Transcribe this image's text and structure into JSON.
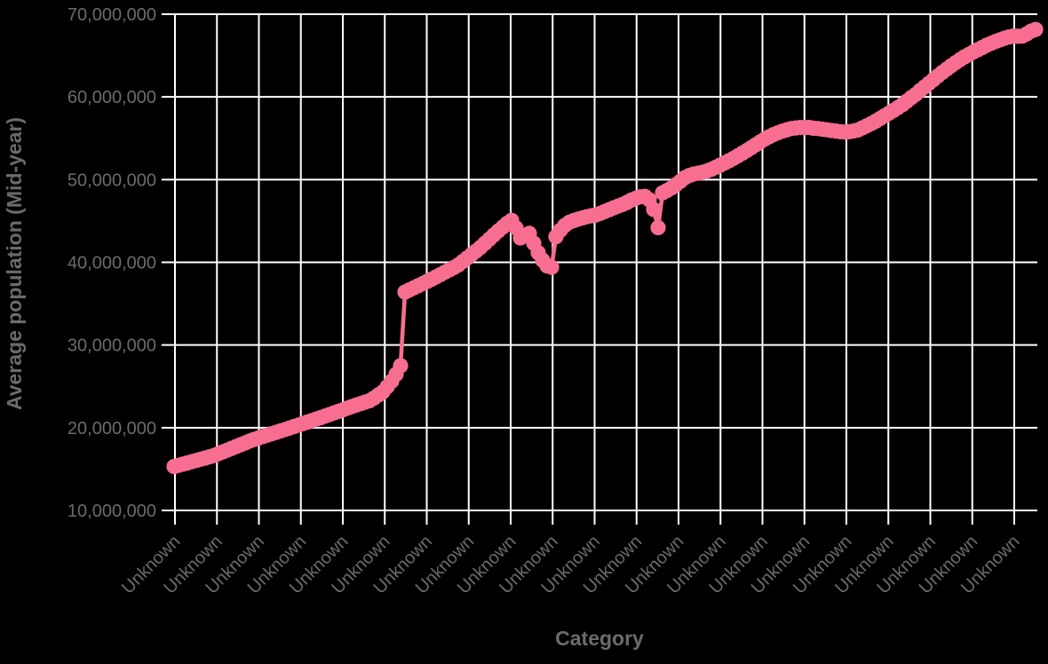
{
  "chart_data": {
    "type": "line",
    "title": "",
    "xlabel": "Category",
    "ylabel": "Average population (Mid-year)",
    "legend_position": "none",
    "grid": true,
    "ylim": [
      10000000,
      70000000
    ],
    "y_ticks": [
      10000000,
      20000000,
      30000000,
      40000000,
      50000000,
      60000000,
      70000000
    ],
    "y_tick_labels": [
      "10,000,000",
      "20,000,000",
      "30,000,000",
      "40,000,000",
      "50,000,000",
      "60,000,000",
      "70,000,000"
    ],
    "x_tick_labels": [
      "Unknown",
      "Unknown",
      "Unknown",
      "Unknown",
      "Unknown",
      "Unknown",
      "Unknown",
      "Unknown",
      "Unknown",
      "Unknown",
      "Unknown",
      "Unknown",
      "Unknown",
      "Unknown",
      "Unknown",
      "Unknown",
      "Unknown",
      "Unknown",
      "Unknown",
      "Unknown",
      "Unknown"
    ],
    "colors": {
      "line": "#F76E91",
      "grid": "#FFFFFF",
      "text": "#6B6B6B",
      "background": "#000000"
    },
    "series": [
      {
        "name": "Average population (Mid-year)",
        "marker": "circle",
        "y_unit_multiplier": 1000000,
        "values_millions": [
          15.3,
          15.45,
          15.6,
          15.74,
          15.89,
          16.04,
          16.19,
          16.33,
          16.48,
          16.64,
          16.86,
          17.08,
          17.29,
          17.51,
          17.73,
          17.94,
          18.16,
          18.38,
          18.58,
          18.76,
          18.93,
          19.1,
          19.27,
          19.45,
          19.62,
          19.79,
          19.96,
          20.14,
          20.32,
          20.5,
          20.68,
          20.86,
          21.04,
          21.22,
          21.41,
          21.59,
          21.78,
          21.97,
          22.16,
          22.36,
          22.55,
          22.74,
          22.91,
          23.09,
          23.27,
          23.59,
          23.96,
          24.33,
          24.95,
          25.63,
          26.46,
          27.5,
          36.4,
          36.66,
          36.92,
          37.18,
          37.43,
          37.69,
          37.96,
          38.24,
          38.52,
          38.81,
          39.09,
          39.37,
          39.68,
          40.1,
          40.52,
          40.94,
          41.36,
          41.8,
          42.3,
          42.8,
          43.3,
          43.79,
          44.25,
          44.71,
          45.08,
          44.15,
          42.95,
          43.3,
          43.5,
          42.31,
          41.16,
          40.25,
          39.57,
          39.4,
          43.1,
          43.89,
          44.46,
          44.84,
          45.04,
          45.23,
          45.38,
          45.52,
          45.63,
          45.73,
          45.93,
          46.15,
          46.37,
          46.59,
          46.79,
          47.0,
          47.25,
          47.54,
          47.75,
          47.92,
          47.98,
          47.58,
          46.4,
          44.2,
          48.4,
          48.68,
          48.98,
          49.38,
          49.79,
          50.23,
          50.5,
          50.67,
          50.78,
          50.88,
          51.05,
          51.25,
          51.5,
          51.75,
          52.02,
          52.29,
          52.58,
          52.89,
          53.2,
          53.53,
          53.87,
          54.21,
          54.57,
          54.9,
          55.18,
          55.45,
          55.66,
          55.86,
          56.03,
          56.17,
          56.24,
          56.3,
          56.3,
          56.3,
          56.21,
          56.17,
          56.09,
          56.02,
          55.94,
          55.87,
          55.8,
          55.76,
          55.79,
          55.88,
          56.0,
          56.25,
          56.51,
          56.78,
          57.07,
          57.39,
          57.72,
          58.04,
          58.37,
          58.71,
          59.05,
          59.48,
          59.91,
          60.3,
          60.78,
          61.21,
          61.65,
          62.09,
          62.53,
          62.96,
          63.37,
          63.76,
          64.14,
          64.5,
          64.85,
          65.14,
          65.43,
          65.71,
          65.98,
          66.25,
          66.48,
          66.7,
          66.9,
          67.09,
          67.24,
          67.36,
          67.33,
          67.35,
          67.62,
          67.95,
          68.15
        ]
      }
    ]
  }
}
